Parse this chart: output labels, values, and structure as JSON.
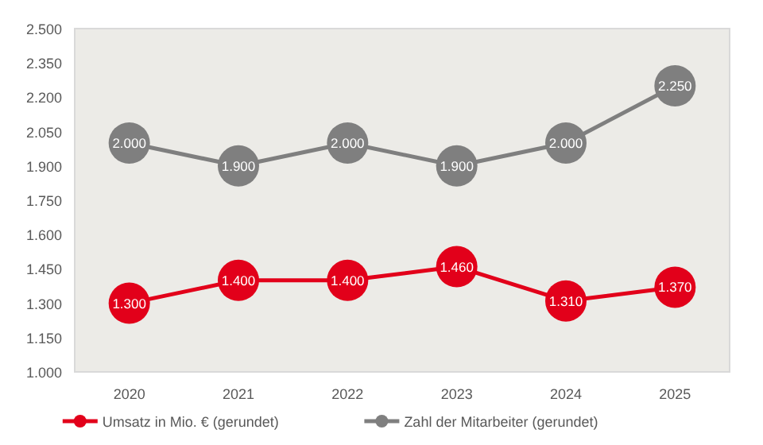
{
  "chart_data": {
    "type": "line",
    "categories": [
      "2020",
      "2021",
      "2022",
      "2023",
      "2024",
      "2025"
    ],
    "series": [
      {
        "name": "Umsatz in Mio. € (gerundet)",
        "color": "#e2001a",
        "values": [
          1300,
          1400,
          1400,
          1460,
          1310,
          1370
        ],
        "value_labels": [
          "1.300",
          "1.400",
          "1.400",
          "1.460",
          "1.310",
          "1.370"
        ]
      },
      {
        "name": "Zahl der Mitarbeiter (gerundet)",
        "color": "#7f7f7f",
        "values": [
          2000,
          1900,
          2000,
          1900,
          2000,
          2250
        ],
        "value_labels": [
          "2.000",
          "1.900",
          "2.000",
          "1.900",
          "2.000",
          "2.250"
        ]
      }
    ],
    "ylim": [
      1000,
      2500
    ],
    "yticks": [
      {
        "value": 1000,
        "label": "1.000"
      },
      {
        "value": 1150,
        "label": "1.150"
      },
      {
        "value": 1300,
        "label": "1.300"
      },
      {
        "value": 1450,
        "label": "1.450"
      },
      {
        "value": 1600,
        "label": "1.600"
      },
      {
        "value": 1750,
        "label": "1.750"
      },
      {
        "value": 1900,
        "label": "1.900"
      },
      {
        "value": 2050,
        "label": "2.050"
      },
      {
        "value": 2200,
        "label": "2.200"
      },
      {
        "value": 2350,
        "label": "2.350"
      },
      {
        "value": 2500,
        "label": "2.500"
      }
    ],
    "marker": "circle",
    "line_style": "solid",
    "legend": "bottom",
    "grid": false
  }
}
